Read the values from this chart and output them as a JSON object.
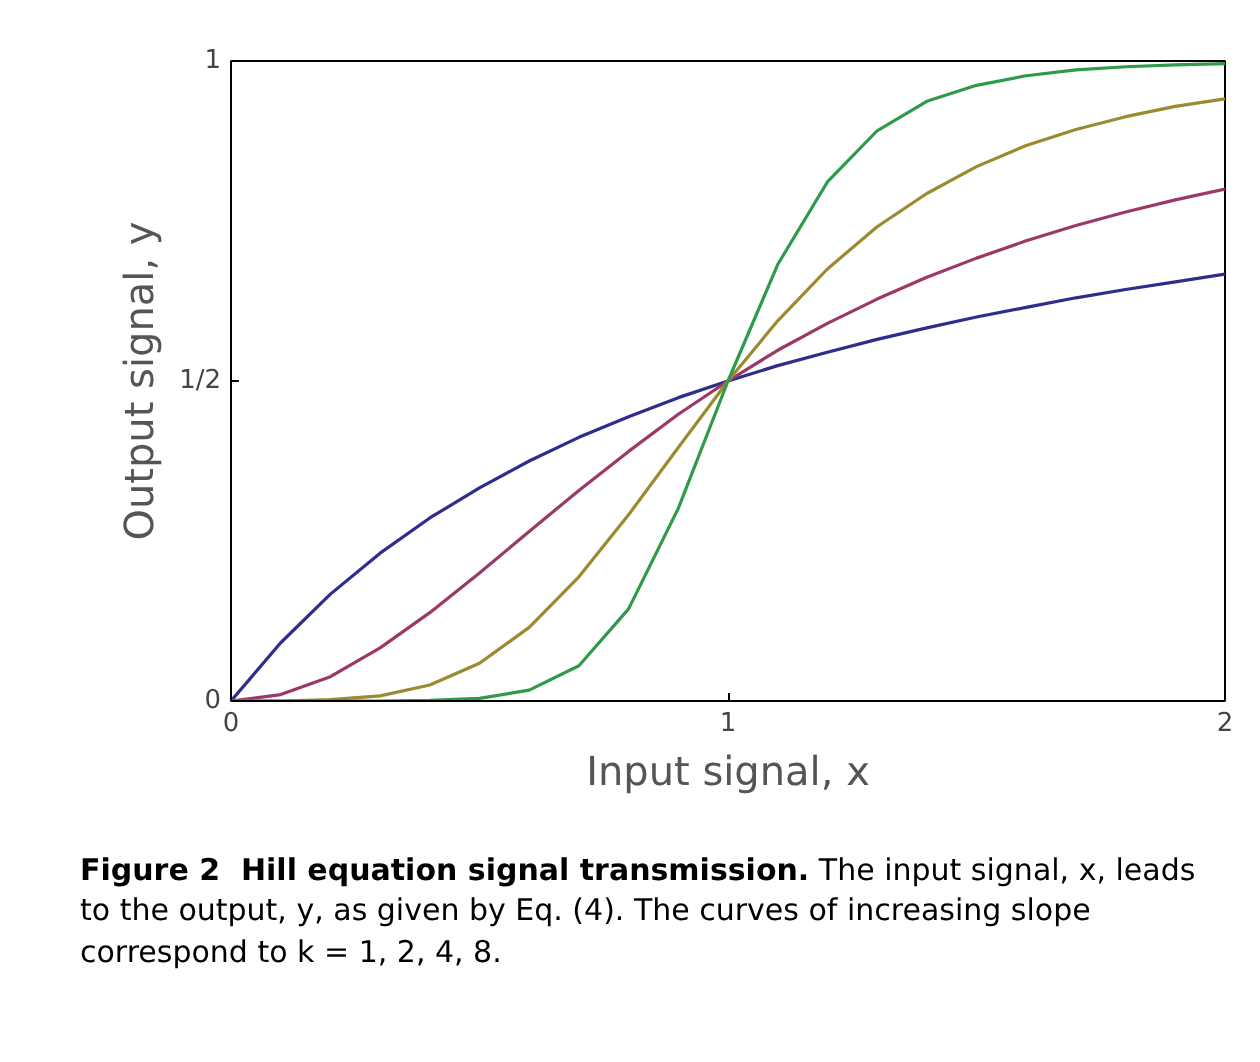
{
  "chart_data": {
    "type": "line",
    "xlabel": "Input signal, x",
    "ylabel": "Output signal, y",
    "x": [
      0,
      0.1,
      0.2,
      0.3,
      0.4,
      0.5,
      0.6,
      0.7,
      0.8,
      0.9,
      1,
      1.1,
      1.2,
      1.3,
      1.4,
      1.5,
      1.6,
      1.7,
      1.8,
      1.9,
      2
    ],
    "series": [
      {
        "color": "#2e2d8c",
        "values": [
          0,
          0.091,
          0.167,
          0.231,
          0.286,
          0.333,
          0.375,
          0.412,
          0.444,
          0.474,
          0.5,
          0.524,
          0.545,
          0.565,
          0.583,
          0.6,
          0.615,
          0.63,
          0.643,
          0.655,
          0.667
        ]
      },
      {
        "color": "#9c3868",
        "values": [
          0,
          0.01,
          0.038,
          0.083,
          0.138,
          0.2,
          0.265,
          0.329,
          0.39,
          0.448,
          0.5,
          0.548,
          0.59,
          0.628,
          0.662,
          0.692,
          0.719,
          0.743,
          0.764,
          0.783,
          0.8
        ]
      },
      {
        "color": "#9a8a30",
        "values": [
          0,
          0,
          0.002,
          0.008,
          0.025,
          0.059,
          0.115,
          0.194,
          0.291,
          0.396,
          0.5,
          0.594,
          0.675,
          0.741,
          0.793,
          0.835,
          0.868,
          0.893,
          0.913,
          0.929,
          0.941
        ]
      },
      {
        "color": "#2e9a4a",
        "values": [
          0,
          0,
          0,
          0,
          0.001,
          0.004,
          0.017,
          0.055,
          0.144,
          0.301,
          0.5,
          0.682,
          0.811,
          0.891,
          0.937,
          0.962,
          0.977,
          0.986,
          0.991,
          0.994,
          0.996
        ]
      }
    ],
    "xlim": [
      0,
      2
    ],
    "ylim": [
      0,
      1
    ],
    "xticks": [
      0,
      1,
      2
    ],
    "yticks": [
      0,
      {
        "value": 0.5,
        "label": "1/2"
      },
      1
    ],
    "grid": false,
    "marker": "none",
    "line_style": "solid",
    "annotations": [
      "Figure 2",
      "Hill equation signal transmission.",
      "The input signal, x, leads to the output, y, as given by Eq. (4). The curves of increasing slope correspond to k = 1, 2, 4, 8."
    ]
  }
}
